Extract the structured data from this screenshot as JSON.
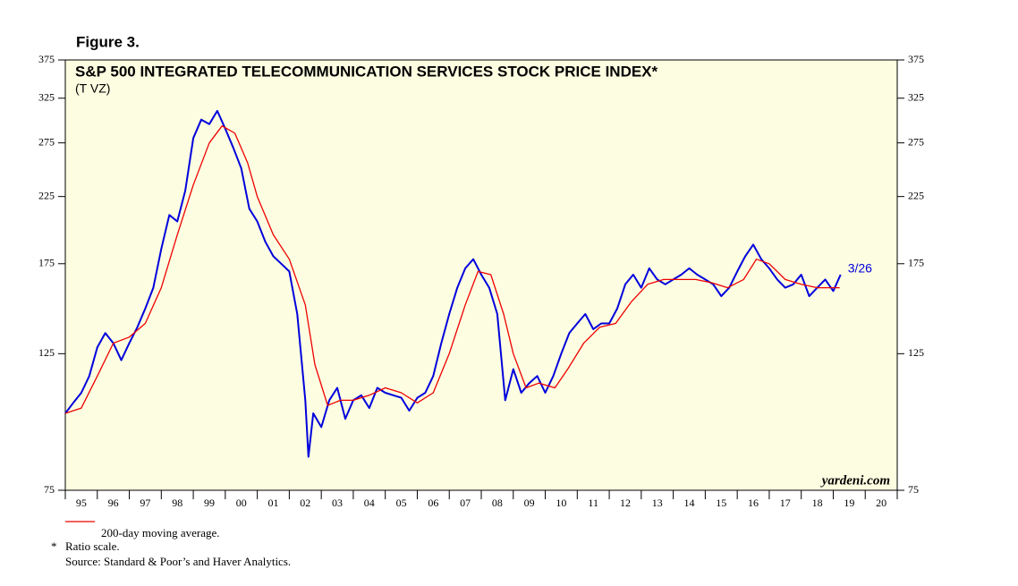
{
  "chart_data": {
    "type": "line",
    "figure_label": "Figure 3.",
    "title": "S&P 500 INTEGRATED TELECOMMUNICATION SERVICES STOCK PRICE INDEX*",
    "subtitle": "(T VZ)",
    "annotation": "3/26",
    "watermark": "yardeni.com",
    "notes": [
      "*",
      "Ratio scale.",
      "Source: Standard & Poor’s and Haver Analytics."
    ],
    "log_scale": true,
    "ylim": [
      75,
      375
    ],
    "yticks": [
      75,
      125,
      175,
      225,
      275,
      325,
      375
    ],
    "xlim": [
      1995,
      2021
    ],
    "xticks": [
      {
        "value": 1995,
        "label": "95"
      },
      {
        "value": 1996,
        "label": "96"
      },
      {
        "value": 1997,
        "label": "97"
      },
      {
        "value": 1998,
        "label": "98"
      },
      {
        "value": 1999,
        "label": "99"
      },
      {
        "value": 2000,
        "label": "00"
      },
      {
        "value": 2001,
        "label": "01"
      },
      {
        "value": 2002,
        "label": "02"
      },
      {
        "value": 2003,
        "label": "03"
      },
      {
        "value": 2004,
        "label": "04"
      },
      {
        "value": 2005,
        "label": "05"
      },
      {
        "value": 2006,
        "label": "06"
      },
      {
        "value": 2007,
        "label": "07"
      },
      {
        "value": 2008,
        "label": "08"
      },
      {
        "value": 2009,
        "label": "09"
      },
      {
        "value": 2010,
        "label": "10"
      },
      {
        "value": 2011,
        "label": "11"
      },
      {
        "value": 2012,
        "label": "12"
      },
      {
        "value": 2013,
        "label": "13"
      },
      {
        "value": 2014,
        "label": "14"
      },
      {
        "value": 2015,
        "label": "15"
      },
      {
        "value": 2016,
        "label": "16"
      },
      {
        "value": 2017,
        "label": "17"
      },
      {
        "value": 2018,
        "label": "18"
      },
      {
        "value": 2019,
        "label": "19"
      },
      {
        "value": 2020,
        "label": "20"
      }
    ],
    "series": [
      {
        "color": "#0000dd",
        "x": [
          1995.0,
          1995.25,
          1995.5,
          1995.75,
          1996.0,
          1996.25,
          1996.5,
          1996.75,
          1997.0,
          1997.25,
          1997.5,
          1997.75,
          1998.0,
          1998.25,
          1998.5,
          1998.75,
          1999.0,
          1999.25,
          1999.5,
          1999.75,
          2000.0,
          2000.25,
          2000.5,
          2000.75,
          2001.0,
          2001.25,
          2001.5,
          2001.75,
          2002.0,
          2002.25,
          2002.5,
          2002.6,
          2002.75,
          2003.0,
          2003.25,
          2003.5,
          2003.75,
          2004.0,
          2004.25,
          2004.5,
          2004.75,
          2005.0,
          2005.25,
          2005.5,
          2005.75,
          2006.0,
          2006.25,
          2006.5,
          2006.75,
          2007.0,
          2007.25,
          2007.5,
          2007.75,
          2008.0,
          2008.25,
          2008.5,
          2008.75,
          2009.0,
          2009.25,
          2009.5,
          2009.75,
          2010.0,
          2010.25,
          2010.5,
          2010.75,
          2011.0,
          2011.25,
          2011.5,
          2011.75,
          2012.0,
          2012.25,
          2012.5,
          2012.75,
          2013.0,
          2013.25,
          2013.5,
          2013.75,
          2014.0,
          2014.25,
          2014.5,
          2014.75,
          2015.0,
          2015.25,
          2015.5,
          2015.75,
          2016.0,
          2016.25,
          2016.5,
          2016.75,
          2017.0,
          2017.25,
          2017.5,
          2017.75,
          2018.0,
          2018.25,
          2018.5,
          2018.75,
          2019.0,
          2019.23
        ],
        "values": [
          100,
          104,
          108,
          115,
          128,
          135,
          130,
          122,
          130,
          138,
          148,
          160,
          185,
          210,
          205,
          230,
          280,
          300,
          295,
          310,
          290,
          270,
          250,
          215,
          205,
          190,
          180,
          175,
          170,
          145,
          105,
          85,
          100,
          95,
          105,
          110,
          98,
          105,
          107,
          102,
          110,
          108,
          107,
          106,
          101,
          106,
          108,
          115,
          130,
          145,
          160,
          172,
          178,
          168,
          160,
          145,
          105,
          118,
          108,
          112,
          115,
          108,
          115,
          125,
          135,
          140,
          145,
          137,
          140,
          140,
          148,
          162,
          168,
          160,
          172,
          165,
          162,
          165,
          168,
          172,
          168,
          165,
          162,
          155,
          160,
          170,
          180,
          188,
          178,
          172,
          165,
          160,
          162,
          168,
          155,
          160,
          165,
          158,
          168
        ]
      },
      {
        "name": "200-day moving average.",
        "color": "#ee0000",
        "x": [
          1995.0,
          1995.5,
          1996.0,
          1996.5,
          1997.0,
          1997.5,
          1998.0,
          1998.5,
          1999.0,
          1999.5,
          1999.9,
          2000.3,
          2000.7,
          2001.0,
          2001.5,
          2002.0,
          2002.5,
          2002.8,
          2003.2,
          2003.6,
          2004.0,
          2004.5,
          2005.0,
          2005.5,
          2006.0,
          2006.5,
          2007.0,
          2007.5,
          2007.9,
          2008.3,
          2008.7,
          2009.0,
          2009.4,
          2009.8,
          2010.3,
          2010.7,
          2011.2,
          2011.7,
          2012.2,
          2012.7,
          2013.2,
          2013.7,
          2014.2,
          2014.7,
          2015.2,
          2015.7,
          2016.2,
          2016.6,
          2017.0,
          2017.5,
          2018.0,
          2018.5,
          2019.2
        ],
        "values": [
          100,
          102,
          115,
          130,
          133,
          140,
          160,
          195,
          235,
          275,
          293,
          285,
          255,
          225,
          195,
          178,
          150,
          120,
          103,
          105,
          105,
          107,
          110,
          108,
          104,
          108,
          125,
          150,
          170,
          168,
          145,
          125,
          110,
          112,
          110,
          118,
          130,
          138,
          140,
          152,
          162,
          165,
          165,
          165,
          163,
          160,
          165,
          178,
          175,
          165,
          162,
          160,
          160
        ]
      }
    ]
  }
}
